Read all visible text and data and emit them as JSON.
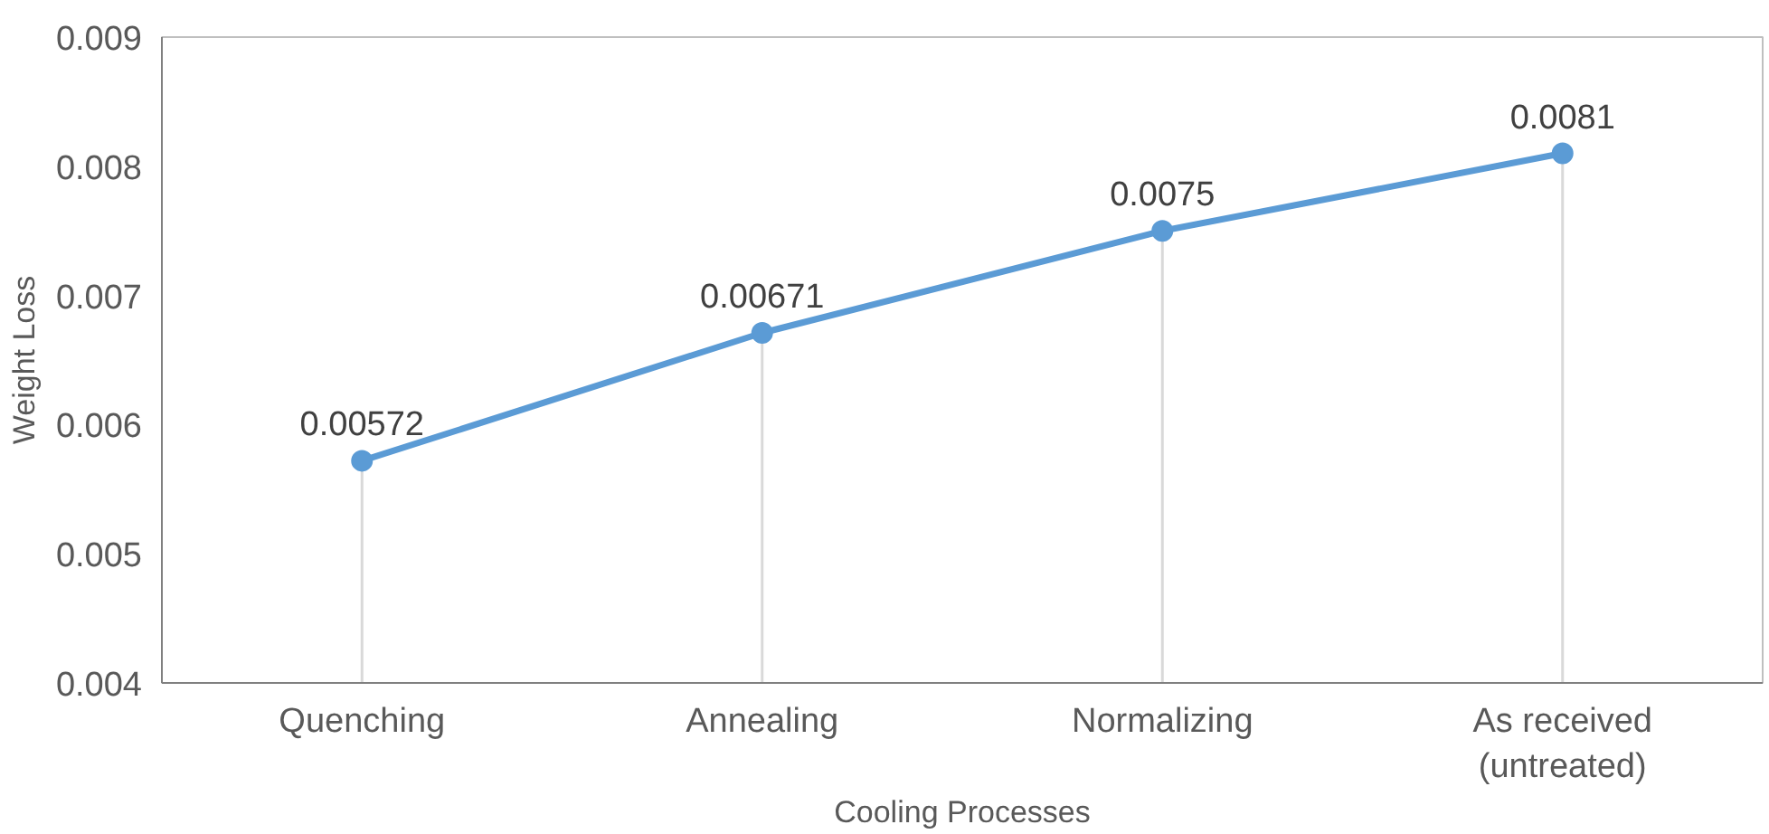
{
  "chart_data": {
    "type": "line",
    "xlabel": "Cooling Processes",
    "ylabel": "Weight Loss",
    "categories": [
      "Quenching",
      "Annealing",
      "Normalizing",
      "As received\n(untreated)"
    ],
    "series": [
      {
        "color": "#5b9bd5",
        "values": [
          0.00572,
          0.00671,
          0.0075,
          0.0081
        ]
      }
    ],
    "ylim": [
      0.004,
      0.009
    ],
    "yticks": [
      0.004,
      0.005,
      0.006,
      0.007,
      0.008,
      0.009
    ],
    "data_labels": true,
    "marker": "circle",
    "line_style": "solid"
  }
}
